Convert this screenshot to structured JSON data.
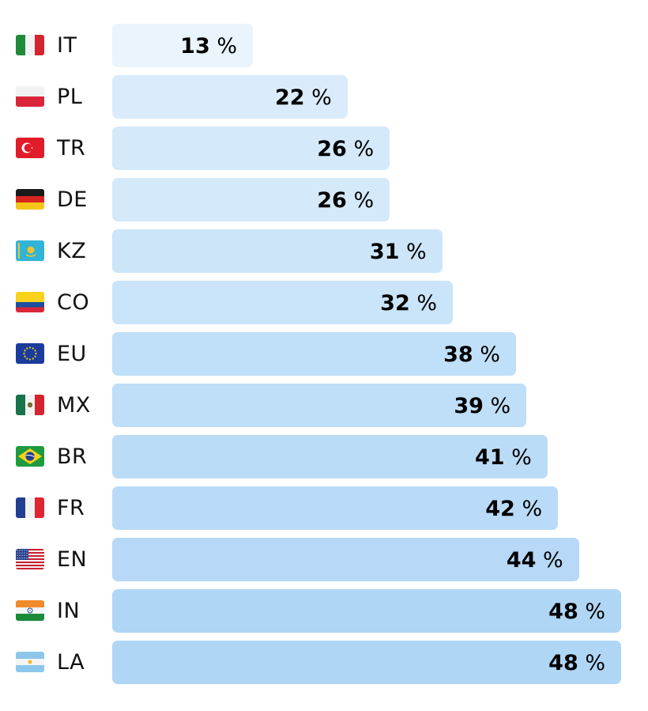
{
  "chart_data": {
    "type": "bar",
    "orientation": "horizontal",
    "title": "",
    "xlabel": "",
    "ylabel": "",
    "xlim": [
      0,
      48
    ],
    "unit": "%",
    "categories": [
      "IT",
      "PL",
      "TR",
      "DE",
      "KZ",
      "CO",
      "EU",
      "MX",
      "BR",
      "FR",
      "EN",
      "IN",
      "LA"
    ],
    "values": [
      13,
      22,
      26,
      26,
      31,
      32,
      38,
      39,
      41,
      42,
      44,
      48,
      48
    ],
    "flags": [
      "flag-italy-icon",
      "flag-poland-icon",
      "flag-turkey-icon",
      "flag-germany-icon",
      "flag-kazakhstan-icon",
      "flag-colombia-icon",
      "flag-eu-icon",
      "flag-mexico-icon",
      "flag-brazil-icon",
      "flag-france-icon",
      "flag-usa-icon",
      "flag-india-icon",
      "flag-argentina-icon"
    ],
    "color_low": "#e9f4fd",
    "color_high": "#b0d6f6"
  }
}
